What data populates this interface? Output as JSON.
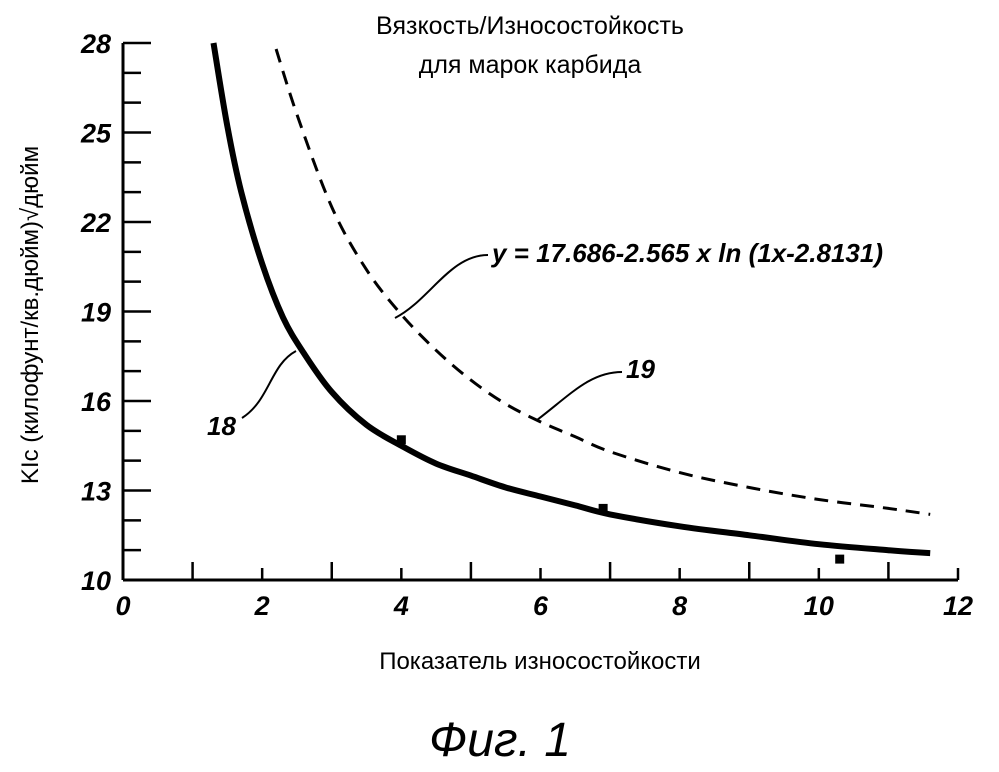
{
  "chart_data": {
    "type": "line",
    "title_line1": "Вязкость/Износостойкость",
    "title_line2": "для марок карбида",
    "xlabel": "Показатель износостойкости",
    "ylabel": "KIc (килофунт/кв.дюйм)√дюйм",
    "xlim": [
      0,
      12
    ],
    "ylim": [
      10,
      28
    ],
    "x_ticks": [
      "0",
      "2",
      "4",
      "6",
      "8",
      "10",
      "12"
    ],
    "y_ticks": [
      "10",
      "13",
      "16",
      "19",
      "22",
      "25",
      "28"
    ],
    "series": [
      {
        "id": "18",
        "style": "solid",
        "points": [
          [
            1.3,
            28.0
          ],
          [
            1.5,
            25.2
          ],
          [
            1.7,
            23.0
          ],
          [
            2.0,
            20.6
          ],
          [
            2.3,
            18.8
          ],
          [
            2.6,
            17.6
          ],
          [
            3.0,
            16.3
          ],
          [
            3.5,
            15.2
          ],
          [
            4.0,
            14.5
          ],
          [
            4.5,
            13.9
          ],
          [
            5.0,
            13.5
          ],
          [
            5.5,
            13.1
          ],
          [
            6.0,
            12.8
          ],
          [
            6.5,
            12.5
          ],
          [
            7.0,
            12.2
          ],
          [
            8.0,
            11.8
          ],
          [
            9.0,
            11.5
          ],
          [
            10.0,
            11.2
          ],
          [
            11.0,
            11.0
          ],
          [
            11.6,
            10.9
          ]
        ]
      },
      {
        "id": "19",
        "style": "dashed",
        "points": [
          [
            2.2,
            27.8
          ],
          [
            2.5,
            25.6
          ],
          [
            3.0,
            22.5
          ],
          [
            3.5,
            20.4
          ],
          [
            4.0,
            18.9
          ],
          [
            4.5,
            17.7
          ],
          [
            5.0,
            16.7
          ],
          [
            5.5,
            15.9
          ],
          [
            6.0,
            15.3
          ],
          [
            6.5,
            14.8
          ],
          [
            7.0,
            14.3
          ],
          [
            8.0,
            13.6
          ],
          [
            9.0,
            13.1
          ],
          [
            10.0,
            12.7
          ],
          [
            11.0,
            12.4
          ],
          [
            11.6,
            12.2
          ]
        ]
      }
    ],
    "markers": [
      [
        4.0,
        14.7
      ],
      [
        6.9,
        12.4
      ],
      [
        10.3,
        10.7
      ]
    ],
    "annotations": [
      {
        "text": "y = 17.686-2.565 x ln (1x-2.8131)"
      },
      {
        "text": "19"
      },
      {
        "text": "18"
      }
    ]
  },
  "caption": "Фиг. 1"
}
